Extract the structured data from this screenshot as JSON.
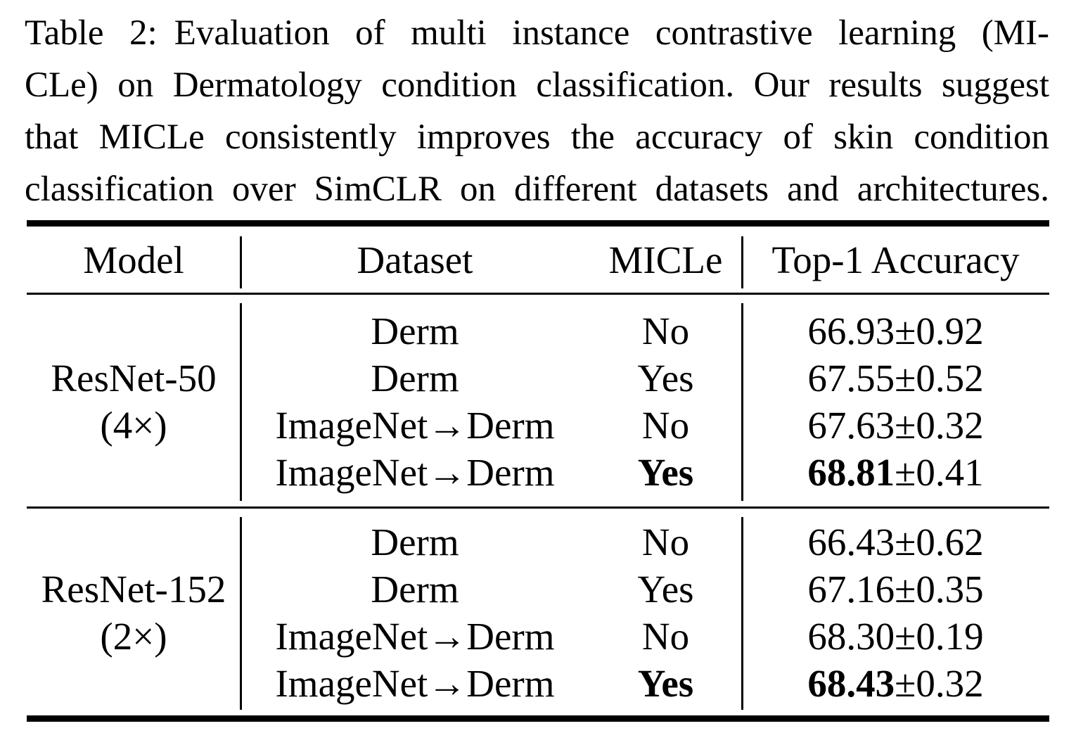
{
  "caption": {
    "label": "Table 2:",
    "lines": [
      "Evaluation of multi instance contrastive learning (MI-",
      "CLe) on Dermatology condition classification. Our results suggest",
      "that MICLe consistently improves the accuracy of skin condition",
      "classification over SimCLR on different datasets and architectures."
    ]
  },
  "table": {
    "headers": {
      "model": "Model",
      "dataset": "Dataset",
      "micle": "MICLe",
      "accuracy": "Top-1 Accuracy"
    },
    "groups": [
      {
        "model": [
          "ResNet-50",
          "(4×)"
        ],
        "rows": [
          {
            "dataset": "Derm",
            "micle": "No",
            "acc": "66.93",
            "err": "±0.92",
            "bold": false
          },
          {
            "dataset": "Derm",
            "micle": "Yes",
            "acc": "67.55",
            "err": "±0.52",
            "bold": false
          },
          {
            "dataset": "ImageNet→Derm",
            "micle": "No",
            "acc": "67.63",
            "err": "±0.32",
            "bold": false
          },
          {
            "dataset": "ImageNet→Derm",
            "micle": "Yes",
            "acc": "68.81",
            "err": "±0.41",
            "bold": true
          }
        ]
      },
      {
        "model": [
          "ResNet-152",
          "(2×)"
        ],
        "rows": [
          {
            "dataset": "Derm",
            "micle": "No",
            "acc": "66.43",
            "err": "±0.62",
            "bold": false
          },
          {
            "dataset": "Derm",
            "micle": "Yes",
            "acc": "67.16",
            "err": "±0.35",
            "bold": false
          },
          {
            "dataset": "ImageNet→Derm",
            "micle": "No",
            "acc": "68.30",
            "err": "±0.19",
            "bold": false
          },
          {
            "dataset": "ImageNet→Derm",
            "micle": "Yes",
            "acc": "68.43",
            "err": "±0.32",
            "bold": true
          }
        ]
      }
    ],
    "colors": {
      "text": "#000000",
      "background": "#ffffff",
      "rule": "#000000"
    }
  }
}
